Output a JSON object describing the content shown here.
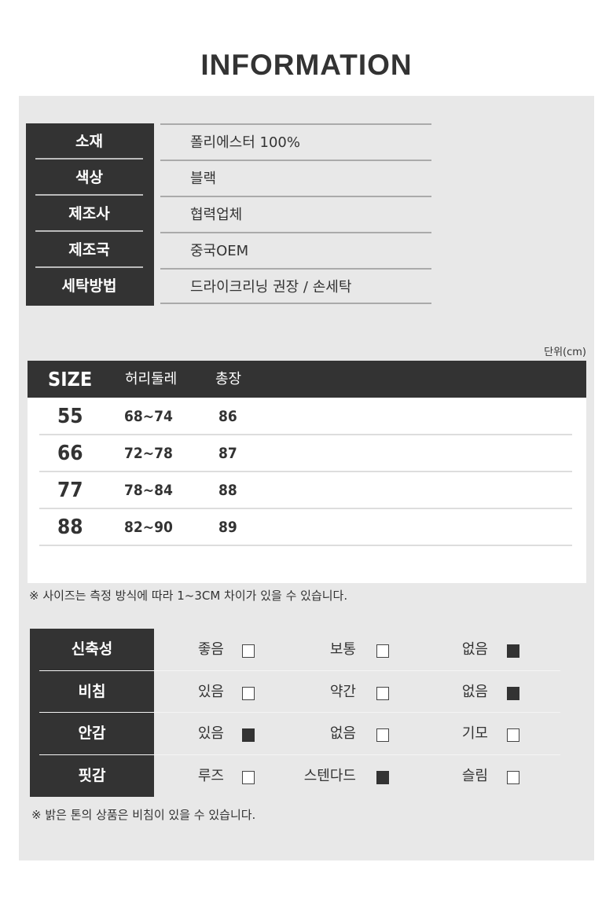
{
  "title": "INFORMATION",
  "info": [
    {
      "label": "소재",
      "value": "폴리에스터 100%"
    },
    {
      "label": "색상",
      "value": "블랙"
    },
    {
      "label": "제조사",
      "value": "협력업체"
    },
    {
      "label": "제조국",
      "value": "중국OEM"
    },
    {
      "label": "세탁방법",
      "value": "드라이크리닝 권장 / 손세탁"
    }
  ],
  "size_table": {
    "unit": "단위(cm)",
    "headers": [
      "SIZE",
      "허리둘레",
      "총장"
    ],
    "rows": [
      [
        "55",
        "68~74",
        "86"
      ],
      [
        "66",
        "72~78",
        "87"
      ],
      [
        "77",
        "78~84",
        "88"
      ],
      [
        "88",
        "82~90",
        "89"
      ]
    ],
    "note": "※ 사이즈는 측정 방식에 따라 1~3CM 차이가 있을 수 있습니다."
  },
  "features": {
    "rows": [
      {
        "label": "신축성",
        "options": [
          {
            "text": "좋음",
            "checked": false
          },
          {
            "text": "보통",
            "checked": false
          },
          {
            "text": "없음",
            "checked": true
          }
        ]
      },
      {
        "label": "비침",
        "options": [
          {
            "text": "있음",
            "checked": false
          },
          {
            "text": "약간",
            "checked": false
          },
          {
            "text": "없음",
            "checked": true
          }
        ]
      },
      {
        "label": "안감",
        "options": [
          {
            "text": "있음",
            "checked": true
          },
          {
            "text": "없음",
            "checked": false
          },
          {
            "text": "기모",
            "checked": false
          }
        ]
      },
      {
        "label": "핏감",
        "options": [
          {
            "text": "루즈",
            "checked": false
          },
          {
            "text": "스텐다드",
            "checked": true
          },
          {
            "text": "슬림",
            "checked": false
          }
        ]
      }
    ],
    "note": "※ 밝은 톤의 상품은 비침이 있을 수 있습니다."
  },
  "colors": {
    "dark": "#333333",
    "panel": "#e8e8e8"
  }
}
